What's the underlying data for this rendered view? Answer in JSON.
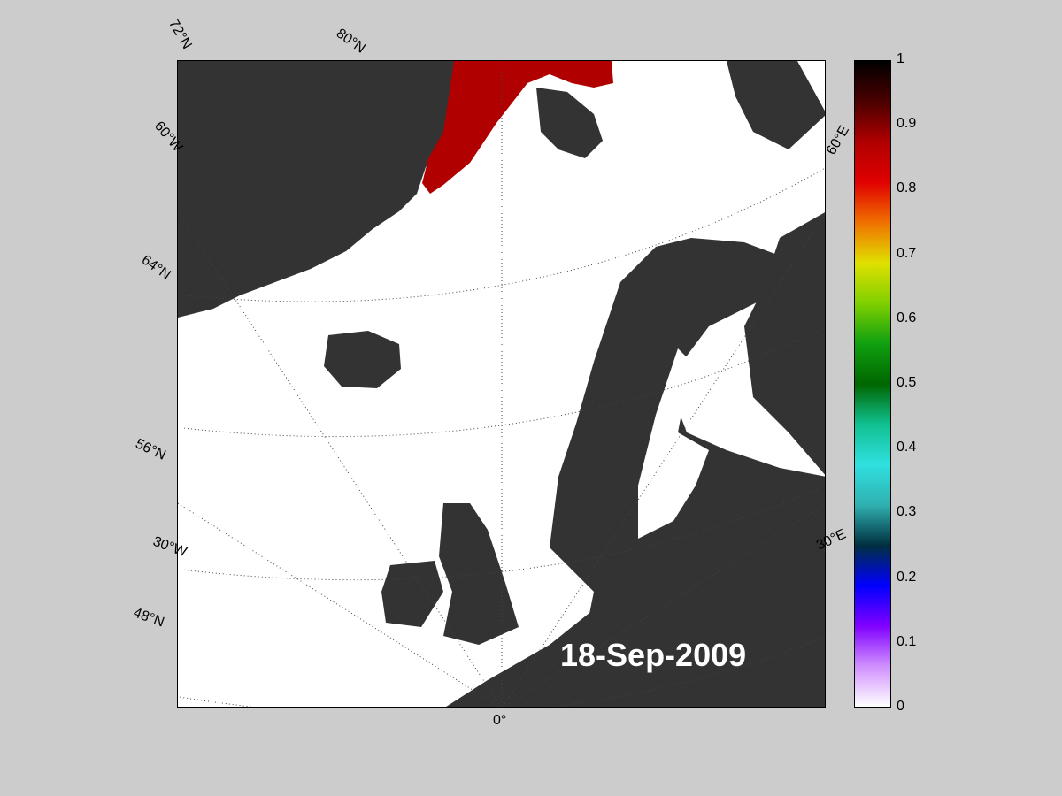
{
  "map": {
    "date_label": "18-Sep-2009",
    "lon_labels": [
      "0°",
      "30°W",
      "60°W",
      "30°E",
      "60°E"
    ],
    "lat_labels": [
      "72°N",
      "80°N",
      "64°N",
      "56°N",
      "48°N"
    ]
  },
  "colorbar": {
    "ticks": [
      "1",
      "0.9",
      "0.8",
      "0.7",
      "0.6",
      "0.5",
      "0.4",
      "0.3",
      "0.2",
      "0.1",
      "0"
    ],
    "stops": [
      "#000000",
      "#4a0000",
      "#b00000",
      "#e00000",
      "#f07000",
      "#e0e000",
      "#80d000",
      "#10a010",
      "#006600",
      "#10c090",
      "#30e0e0",
      "#30b0b0",
      "#003040",
      "#0000ff",
      "#8000ff",
      "#d090ff",
      "#ffffff"
    ]
  },
  "colors": {
    "land": "#333333",
    "background": "#cccccc",
    "ocean": "#ffffff"
  }
}
